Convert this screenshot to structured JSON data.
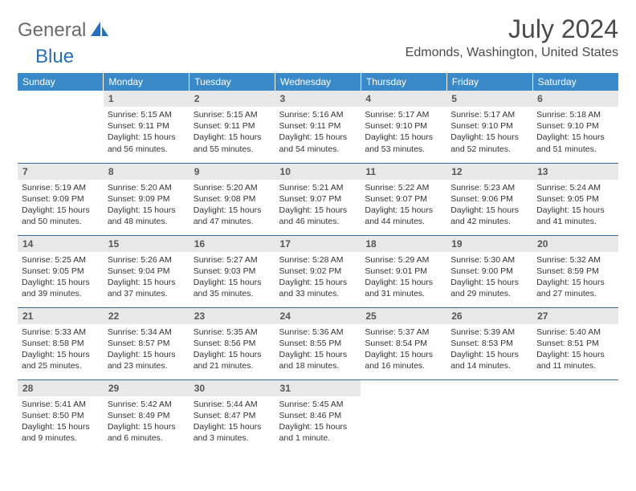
{
  "logo": {
    "general": "General",
    "blue": "Blue"
  },
  "title": "July 2024",
  "location": "Edmonds, Washington, United States",
  "colors": {
    "header_bg": "#3a8ac9",
    "header_text": "#ffffff",
    "daynum_bg": "#e8e8e8",
    "daynum_text": "#555555",
    "body_text": "#333333",
    "rule": "#3a6a9a",
    "logo_gray": "#6a6a6a",
    "logo_blue": "#2a6db8"
  },
  "daysOfWeek": [
    "Sunday",
    "Monday",
    "Tuesday",
    "Wednesday",
    "Thursday",
    "Friday",
    "Saturday"
  ],
  "weeks": [
    [
      null,
      {
        "n": "1",
        "sr": "5:15 AM",
        "ss": "9:11 PM",
        "dl": "15 hours and 56 minutes."
      },
      {
        "n": "2",
        "sr": "5:15 AM",
        "ss": "9:11 PM",
        "dl": "15 hours and 55 minutes."
      },
      {
        "n": "3",
        "sr": "5:16 AM",
        "ss": "9:11 PM",
        "dl": "15 hours and 54 minutes."
      },
      {
        "n": "4",
        "sr": "5:17 AM",
        "ss": "9:10 PM",
        "dl": "15 hours and 53 minutes."
      },
      {
        "n": "5",
        "sr": "5:17 AM",
        "ss": "9:10 PM",
        "dl": "15 hours and 52 minutes."
      },
      {
        "n": "6",
        "sr": "5:18 AM",
        "ss": "9:10 PM",
        "dl": "15 hours and 51 minutes."
      }
    ],
    [
      {
        "n": "7",
        "sr": "5:19 AM",
        "ss": "9:09 PM",
        "dl": "15 hours and 50 minutes."
      },
      {
        "n": "8",
        "sr": "5:20 AM",
        "ss": "9:09 PM",
        "dl": "15 hours and 48 minutes."
      },
      {
        "n": "9",
        "sr": "5:20 AM",
        "ss": "9:08 PM",
        "dl": "15 hours and 47 minutes."
      },
      {
        "n": "10",
        "sr": "5:21 AM",
        "ss": "9:07 PM",
        "dl": "15 hours and 46 minutes."
      },
      {
        "n": "11",
        "sr": "5:22 AM",
        "ss": "9:07 PM",
        "dl": "15 hours and 44 minutes."
      },
      {
        "n": "12",
        "sr": "5:23 AM",
        "ss": "9:06 PM",
        "dl": "15 hours and 42 minutes."
      },
      {
        "n": "13",
        "sr": "5:24 AM",
        "ss": "9:05 PM",
        "dl": "15 hours and 41 minutes."
      }
    ],
    [
      {
        "n": "14",
        "sr": "5:25 AM",
        "ss": "9:05 PM",
        "dl": "15 hours and 39 minutes."
      },
      {
        "n": "15",
        "sr": "5:26 AM",
        "ss": "9:04 PM",
        "dl": "15 hours and 37 minutes."
      },
      {
        "n": "16",
        "sr": "5:27 AM",
        "ss": "9:03 PM",
        "dl": "15 hours and 35 minutes."
      },
      {
        "n": "17",
        "sr": "5:28 AM",
        "ss": "9:02 PM",
        "dl": "15 hours and 33 minutes."
      },
      {
        "n": "18",
        "sr": "5:29 AM",
        "ss": "9:01 PM",
        "dl": "15 hours and 31 minutes."
      },
      {
        "n": "19",
        "sr": "5:30 AM",
        "ss": "9:00 PM",
        "dl": "15 hours and 29 minutes."
      },
      {
        "n": "20",
        "sr": "5:32 AM",
        "ss": "8:59 PM",
        "dl": "15 hours and 27 minutes."
      }
    ],
    [
      {
        "n": "21",
        "sr": "5:33 AM",
        "ss": "8:58 PM",
        "dl": "15 hours and 25 minutes."
      },
      {
        "n": "22",
        "sr": "5:34 AM",
        "ss": "8:57 PM",
        "dl": "15 hours and 23 minutes."
      },
      {
        "n": "23",
        "sr": "5:35 AM",
        "ss": "8:56 PM",
        "dl": "15 hours and 21 minutes."
      },
      {
        "n": "24",
        "sr": "5:36 AM",
        "ss": "8:55 PM",
        "dl": "15 hours and 18 minutes."
      },
      {
        "n": "25",
        "sr": "5:37 AM",
        "ss": "8:54 PM",
        "dl": "15 hours and 16 minutes."
      },
      {
        "n": "26",
        "sr": "5:39 AM",
        "ss": "8:53 PM",
        "dl": "15 hours and 14 minutes."
      },
      {
        "n": "27",
        "sr": "5:40 AM",
        "ss": "8:51 PM",
        "dl": "15 hours and 11 minutes."
      }
    ],
    [
      {
        "n": "28",
        "sr": "5:41 AM",
        "ss": "8:50 PM",
        "dl": "15 hours and 9 minutes."
      },
      {
        "n": "29",
        "sr": "5:42 AM",
        "ss": "8:49 PM",
        "dl": "15 hours and 6 minutes."
      },
      {
        "n": "30",
        "sr": "5:44 AM",
        "ss": "8:47 PM",
        "dl": "15 hours and 3 minutes."
      },
      {
        "n": "31",
        "sr": "5:45 AM",
        "ss": "8:46 PM",
        "dl": "15 hours and 1 minute."
      },
      null,
      null,
      null
    ]
  ],
  "labels": {
    "sunrise": "Sunrise: ",
    "sunset": "Sunset: ",
    "daylight": "Daylight: "
  }
}
